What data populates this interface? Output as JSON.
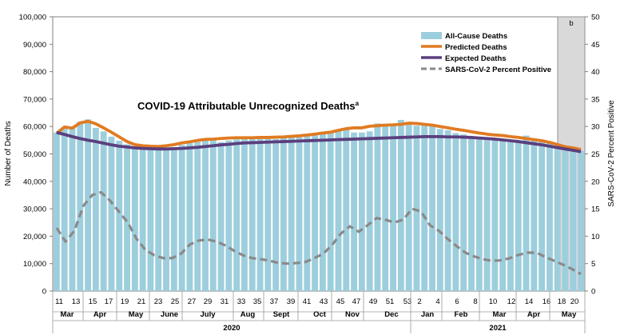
{
  "chart_data": {
    "type": "bar",
    "title": "COVID-19 Attributable Unrecognized Deaths",
    "title_superscript": "a",
    "ylabel": "Number of Deaths",
    "y2label": "SARS-CoV-2 Percent Positive",
    "ylim": [
      0,
      100000
    ],
    "y2lim": [
      0,
      50
    ],
    "yticks": [
      "0",
      "10,000",
      "20,000",
      "30,000",
      "40,000",
      "50,000",
      "60,000",
      "70,000",
      "80,000",
      "90,000",
      "100,000"
    ],
    "y2ticks": [
      "0",
      "5",
      "10",
      "15",
      "20",
      "25",
      "30",
      "35",
      "40",
      "45",
      "50"
    ],
    "shaded_label": "b",
    "week_labels": [
      "11",
      "13",
      "15",
      "17",
      "19",
      "21",
      "23",
      "25",
      "27",
      "29",
      "31",
      "33",
      "35",
      "37",
      "39",
      "41",
      "43",
      "45",
      "47",
      "49",
      "51",
      "53",
      "2",
      "4",
      "6",
      "8",
      "10",
      "12",
      "14",
      "16",
      "18",
      "20"
    ],
    "month_labels": [
      "Mar",
      "Apr",
      "May",
      "June",
      "July",
      "Aug",
      "Sept",
      "Oct",
      "Nov",
      "Dec",
      "Jan",
      "Feb",
      "Mar",
      "Apr",
      "May"
    ],
    "year_labels": [
      "2020",
      "2021"
    ],
    "legend": [
      {
        "label": "All-Cause Deaths",
        "kind": "bar",
        "color": "#9DCEDD"
      },
      {
        "label": "Predicted Deaths",
        "kind": "line",
        "color": "#E07B22"
      },
      {
        "label": "Expected Deaths",
        "kind": "line",
        "color": "#5B3F7E"
      },
      {
        "label": "SARS-CoV-2 Percent Positive",
        "kind": "dash",
        "color": "#8A8A8A"
      }
    ],
    "series": [
      {
        "name": "All-Cause Deaths",
        "axis": "left",
        "values": [
          57800,
          59800,
          59500,
          61800,
          62600,
          59500,
          58200,
          56300,
          54800,
          53500,
          52400,
          52000,
          51500,
          51600,
          51800,
          52500,
          53300,
          53900,
          54300,
          54800,
          55800,
          54300,
          54900,
          55300,
          55600,
          55900,
          55400,
          55500,
          55400,
          55700,
          55900,
          56200,
          56600,
          57100,
          57300,
          58200,
          58700,
          59300,
          57800,
          57800,
          58200,
          61100,
          60400,
          60800,
          62400,
          61700,
          60300,
          60800,
          60100,
          59100,
          58600,
          57600,
          57100,
          55900,
          55800,
          55400,
          55000,
          54700,
          54300,
          54700,
          56700,
          55400,
          54900,
          54600,
          52200,
          51800,
          51300,
          51100
        ]
      },
      {
        "name": "Predicted Deaths",
        "axis": "left",
        "values": [
          57500,
          59800,
          59400,
          61300,
          61900,
          61000,
          59500,
          57900,
          56200,
          54500,
          53400,
          53000,
          52800,
          52700,
          53000,
          53400,
          54000,
          54400,
          54900,
          55300,
          55400,
          55600,
          55800,
          55900,
          55900,
          55900,
          56000,
          56000,
          56100,
          56200,
          56400,
          56600,
          56900,
          57200,
          57600,
          57900,
          58600,
          59200,
          59500,
          59500,
          60100,
          60300,
          60500,
          60600,
          60800,
          61200,
          61100,
          60800,
          60500,
          60000,
          59500,
          59000,
          58600,
          58100,
          57600,
          57200,
          56900,
          56700,
          56300,
          56000,
          55600,
          55200,
          54800,
          54200,
          53400,
          52600,
          52200,
          51600
        ]
      },
      {
        "name": "Expected Deaths",
        "axis": "left",
        "values": [
          57800,
          57100,
          56300,
          55600,
          55000,
          54500,
          53900,
          53300,
          52800,
          52500,
          52200,
          52000,
          51900,
          51800,
          51800,
          51900,
          52000,
          52200,
          52400,
          52700,
          53000,
          53300,
          53500,
          53800,
          54000,
          54100,
          54200,
          54300,
          54400,
          54500,
          54600,
          54700,
          54800,
          54900,
          55000,
          55100,
          55200,
          55300,
          55400,
          55500,
          55600,
          55700,
          55800,
          55900,
          56000,
          56100,
          56200,
          56300,
          56300,
          56300,
          56200,
          56200,
          56100,
          56000,
          55800,
          55600,
          55400,
          55100,
          54800,
          54500,
          54100,
          53700,
          53300,
          52800,
          52300,
          51800,
          51300,
          50800
        ]
      },
      {
        "name": "SARS-CoV-2 Percent Positive",
        "axis": "right",
        "values": [
          11.5,
          9.0,
          11.0,
          15.5,
          17.5,
          18.0,
          16.5,
          14.5,
          12.5,
          9.5,
          7.5,
          6.5,
          6.0,
          6.0,
          6.8,
          8.5,
          9.2,
          9.4,
          9.0,
          8.3,
          7.3,
          6.5,
          6.0,
          5.8,
          5.5,
          5.1,
          5.0,
          5.1,
          5.3,
          6.0,
          6.8,
          8.4,
          10.5,
          11.8,
          10.8,
          12.0,
          13.3,
          13.0,
          12.5,
          13.0,
          15.0,
          14.5,
          12.0,
          11.0,
          9.5,
          8.2,
          7.0,
          6.3,
          5.8,
          5.5,
          5.6,
          6.0,
          6.6,
          7.0,
          7.0,
          6.2,
          5.5,
          4.8,
          4.0,
          3.1
        ]
      }
    ]
  }
}
